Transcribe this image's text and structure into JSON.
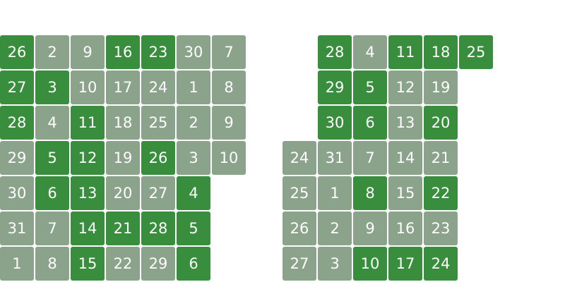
{
  "colors": {
    "highlight": "#388e3c",
    "normal": "#8ba38b",
    "text": "#ffffff"
  },
  "calendars": [
    {
      "columns": [
        [
          {
            "day": "26",
            "on": true
          },
          {
            "day": "27",
            "on": true
          },
          {
            "day": "28",
            "on": true
          },
          {
            "day": "29",
            "on": false
          },
          {
            "day": "30",
            "on": false
          },
          {
            "day": "31",
            "on": false
          },
          {
            "day": "1",
            "on": false
          }
        ],
        [
          {
            "day": "2",
            "on": false
          },
          {
            "day": "3",
            "on": true
          },
          {
            "day": "4",
            "on": false
          },
          {
            "day": "5",
            "on": true
          },
          {
            "day": "6",
            "on": true
          },
          {
            "day": "7",
            "on": false
          },
          {
            "day": "8",
            "on": false
          }
        ],
        [
          {
            "day": "9",
            "on": false
          },
          {
            "day": "10",
            "on": false
          },
          {
            "day": "11",
            "on": true
          },
          {
            "day": "12",
            "on": true
          },
          {
            "day": "13",
            "on": true
          },
          {
            "day": "14",
            "on": true
          },
          {
            "day": "15",
            "on": true
          }
        ],
        [
          {
            "day": "16",
            "on": true
          },
          {
            "day": "17",
            "on": false
          },
          {
            "day": "18",
            "on": false
          },
          {
            "day": "19",
            "on": false
          },
          {
            "day": "20",
            "on": false
          },
          {
            "day": "21",
            "on": true
          },
          {
            "day": "22",
            "on": false
          }
        ],
        [
          {
            "day": "23",
            "on": true
          },
          {
            "day": "24",
            "on": false
          },
          {
            "day": "25",
            "on": false
          },
          {
            "day": "26",
            "on": true
          },
          {
            "day": "27",
            "on": false
          },
          {
            "day": "28",
            "on": true
          },
          {
            "day": "29",
            "on": false
          }
        ],
        [
          {
            "day": "30",
            "on": false
          },
          {
            "day": "1",
            "on": false
          },
          {
            "day": "2",
            "on": false
          },
          {
            "day": "3",
            "on": false
          },
          {
            "day": "4",
            "on": true
          },
          {
            "day": "5",
            "on": true
          },
          {
            "day": "6",
            "on": true
          }
        ],
        [
          {
            "day": "7",
            "on": false
          },
          {
            "day": "8",
            "on": false
          },
          {
            "day": "9",
            "on": false
          },
          {
            "day": "10",
            "on": false
          },
          null,
          null,
          null
        ]
      ]
    },
    {
      "columns": [
        [
          null,
          null,
          null,
          {
            "day": "24",
            "on": false
          },
          {
            "day": "25",
            "on": false
          },
          {
            "day": "26",
            "on": false
          },
          {
            "day": "27",
            "on": false
          }
        ],
        [
          {
            "day": "28",
            "on": true
          },
          {
            "day": "29",
            "on": true
          },
          {
            "day": "30",
            "on": true
          },
          {
            "day": "31",
            "on": false
          },
          {
            "day": "1",
            "on": false
          },
          {
            "day": "2",
            "on": false
          },
          {
            "day": "3",
            "on": false
          }
        ],
        [
          {
            "day": "4",
            "on": false
          },
          {
            "day": "5",
            "on": true
          },
          {
            "day": "6",
            "on": true
          },
          {
            "day": "7",
            "on": false
          },
          {
            "day": "8",
            "on": true
          },
          {
            "day": "9",
            "on": false
          },
          {
            "day": "10",
            "on": true
          }
        ],
        [
          {
            "day": "11",
            "on": true
          },
          {
            "day": "12",
            "on": false
          },
          {
            "day": "13",
            "on": false
          },
          {
            "day": "14",
            "on": false
          },
          {
            "day": "15",
            "on": false
          },
          {
            "day": "16",
            "on": false
          },
          {
            "day": "17",
            "on": true
          }
        ],
        [
          {
            "day": "18",
            "on": true
          },
          {
            "day": "19",
            "on": false
          },
          {
            "day": "20",
            "on": true
          },
          {
            "day": "21",
            "on": false
          },
          {
            "day": "22",
            "on": true
          },
          {
            "day": "23",
            "on": false
          },
          {
            "day": "24",
            "on": true
          }
        ],
        [
          {
            "day": "25",
            "on": true
          },
          null,
          null,
          null,
          null,
          null,
          null
        ]
      ]
    }
  ]
}
